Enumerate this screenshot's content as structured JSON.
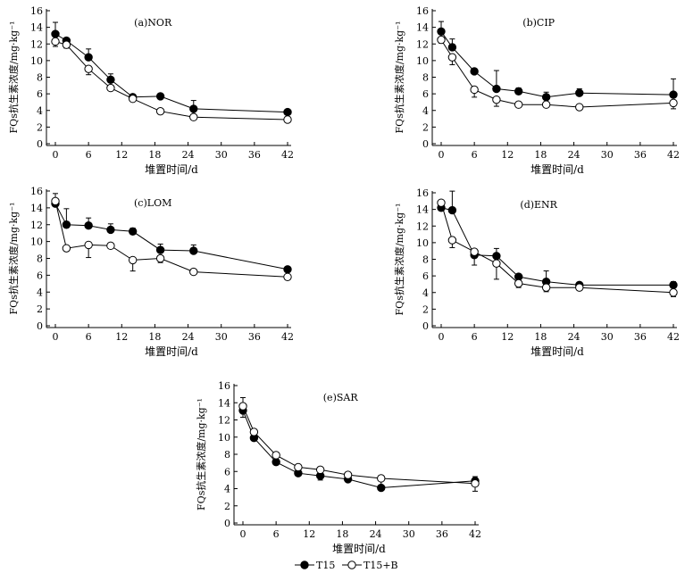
{
  "figure": {
    "legend": {
      "items": [
        "T15",
        "T15+B"
      ]
    }
  },
  "chart_data": [
    {
      "type": "line",
      "title": "(a)NOR",
      "xlabel": "堆置时间/d",
      "ylabel": "FQs抗生素浓度/mg·kg⁻¹",
      "xlim": [
        0,
        42
      ],
      "ylim": [
        0,
        16
      ],
      "xticks": [
        0,
        6,
        12,
        18,
        24,
        30,
        36,
        42
      ],
      "yticks": [
        0,
        2,
        4,
        6,
        8,
        10,
        12,
        14,
        16
      ],
      "x": [
        0,
        2,
        6,
        10,
        14,
        19,
        25,
        42
      ],
      "series": [
        {
          "name": "T15",
          "values": [
            13.2,
            12.4,
            10.4,
            7.7,
            5.6,
            5.7,
            4.2,
            3.8
          ],
          "errors": [
            1.4,
            0.2,
            1.0,
            0.7,
            0.2,
            0.2,
            1.0,
            0.3
          ]
        },
        {
          "name": "T15+B",
          "values": [
            12.3,
            11.9,
            9.0,
            6.7,
            5.4,
            3.9,
            3.2,
            2.9
          ],
          "errors": [
            0.6,
            0.4,
            0.7,
            0.2,
            0.3,
            0.2,
            0.2,
            0.2
          ]
        }
      ]
    },
    {
      "type": "line",
      "title": "(b)CIP",
      "xlabel": "堆置时间/d",
      "ylabel": "FQs抗生素浓度/mg·kg⁻¹",
      "xlim": [
        0,
        42
      ],
      "ylim": [
        0,
        16
      ],
      "xticks": [
        0,
        6,
        12,
        18,
        24,
        30,
        36,
        42
      ],
      "yticks": [
        0,
        2,
        4,
        6,
        8,
        10,
        12,
        14,
        16
      ],
      "x": [
        0,
        2,
        6,
        10,
        14,
        19,
        25,
        42
      ],
      "series": [
        {
          "name": "T15",
          "values": [
            13.5,
            11.6,
            8.7,
            6.6,
            6.3,
            5.6,
            6.1,
            5.9
          ],
          "errors": [
            1.2,
            1.0,
            0.1,
            2.2,
            0.4,
            0.6,
            0.5,
            1.9
          ]
        },
        {
          "name": "T15+B",
          "values": [
            12.5,
            10.4,
            6.5,
            5.3,
            4.7,
            4.7,
            4.4,
            4.9
          ],
          "errors": [
            0.4,
            0.9,
            0.9,
            0.8,
            0.2,
            0.2,
            0.2,
            0.7
          ]
        }
      ]
    },
    {
      "type": "line",
      "title": "(c)LOM",
      "xlabel": "堆置时间/d",
      "ylabel": "FQs抗生素浓度/mg·kg⁻¹",
      "xlim": [
        0,
        42
      ],
      "ylim": [
        0,
        16
      ],
      "xticks": [
        0,
        6,
        12,
        18,
        24,
        30,
        36,
        42
      ],
      "yticks": [
        0,
        2,
        4,
        6,
        8,
        10,
        12,
        14,
        16
      ],
      "x": [
        0,
        2,
        6,
        10,
        14,
        19,
        25,
        42
      ],
      "series": [
        {
          "name": "T15",
          "values": [
            14.5,
            12.0,
            11.9,
            11.4,
            11.2,
            9.0,
            8.9,
            6.7
          ],
          "errors": [
            1.2,
            1.9,
            0.9,
            0.7,
            0.4,
            0.7,
            0.7,
            0.2
          ]
        },
        {
          "name": "T15+B",
          "values": [
            14.8,
            9.2,
            9.6,
            9.5,
            7.8,
            8.0,
            6.4,
            5.8
          ],
          "errors": [
            0.6,
            0.2,
            1.5,
            0.3,
            1.3,
            0.5,
            0.2,
            0.2
          ]
        }
      ]
    },
    {
      "type": "line",
      "title": "(d)ENR",
      "xlabel": "堆置时间/d",
      "ylabel": "FQs抗生素浓度/mg·kg⁻¹",
      "xlim": [
        0,
        42
      ],
      "ylim": [
        0,
        16
      ],
      "xticks": [
        0,
        6,
        12,
        18,
        24,
        30,
        36,
        42
      ],
      "yticks": [
        0,
        2,
        4,
        6,
        8,
        10,
        12,
        14,
        16
      ],
      "x": [
        0,
        2,
        6,
        10,
        14,
        19,
        25,
        42
      ],
      "series": [
        {
          "name": "T15",
          "values": [
            14.2,
            13.9,
            8.5,
            8.4,
            5.9,
            5.3,
            4.9,
            4.9
          ],
          "errors": [
            0.3,
            2.3,
            0.5,
            0.9,
            0.3,
            1.3,
            0.2,
            0.4
          ]
        },
        {
          "name": "T15+B",
          "values": [
            14.8,
            10.3,
            8.9,
            7.5,
            5.1,
            4.6,
            4.6,
            4.0
          ],
          "errors": [
            0.3,
            0.9,
            1.6,
            1.9,
            0.5,
            0.5,
            0.2,
            0.5
          ]
        }
      ]
    },
    {
      "type": "line",
      "title": "(e)SAR",
      "xlabel": "堆置时间/d",
      "ylabel": "FQs抗生素浓度/mg·kg⁻¹",
      "xlim": [
        0,
        42
      ],
      "ylim": [
        0,
        16
      ],
      "xticks": [
        0,
        6,
        12,
        18,
        24,
        30,
        36,
        42
      ],
      "yticks": [
        0,
        2,
        4,
        6,
        8,
        10,
        12,
        14,
        16
      ],
      "x": [
        0,
        2,
        6,
        10,
        14,
        19,
        25,
        42
      ],
      "series": [
        {
          "name": "T15",
          "values": [
            13.1,
            9.9,
            7.1,
            5.8,
            5.5,
            5.1,
            4.1,
            4.9
          ],
          "errors": [
            1.5,
            0.4,
            0.2,
            1.0,
            0.5,
            0.6,
            0.2,
            0.5
          ]
        },
        {
          "name": "T15+B",
          "values": [
            13.6,
            10.6,
            7.9,
            6.5,
            6.2,
            5.6,
            5.2,
            4.6
          ],
          "errors": [
            1.3,
            0.7,
            0.3,
            0.4,
            1.2,
            0.3,
            1.3,
            0.9
          ]
        }
      ]
    }
  ]
}
